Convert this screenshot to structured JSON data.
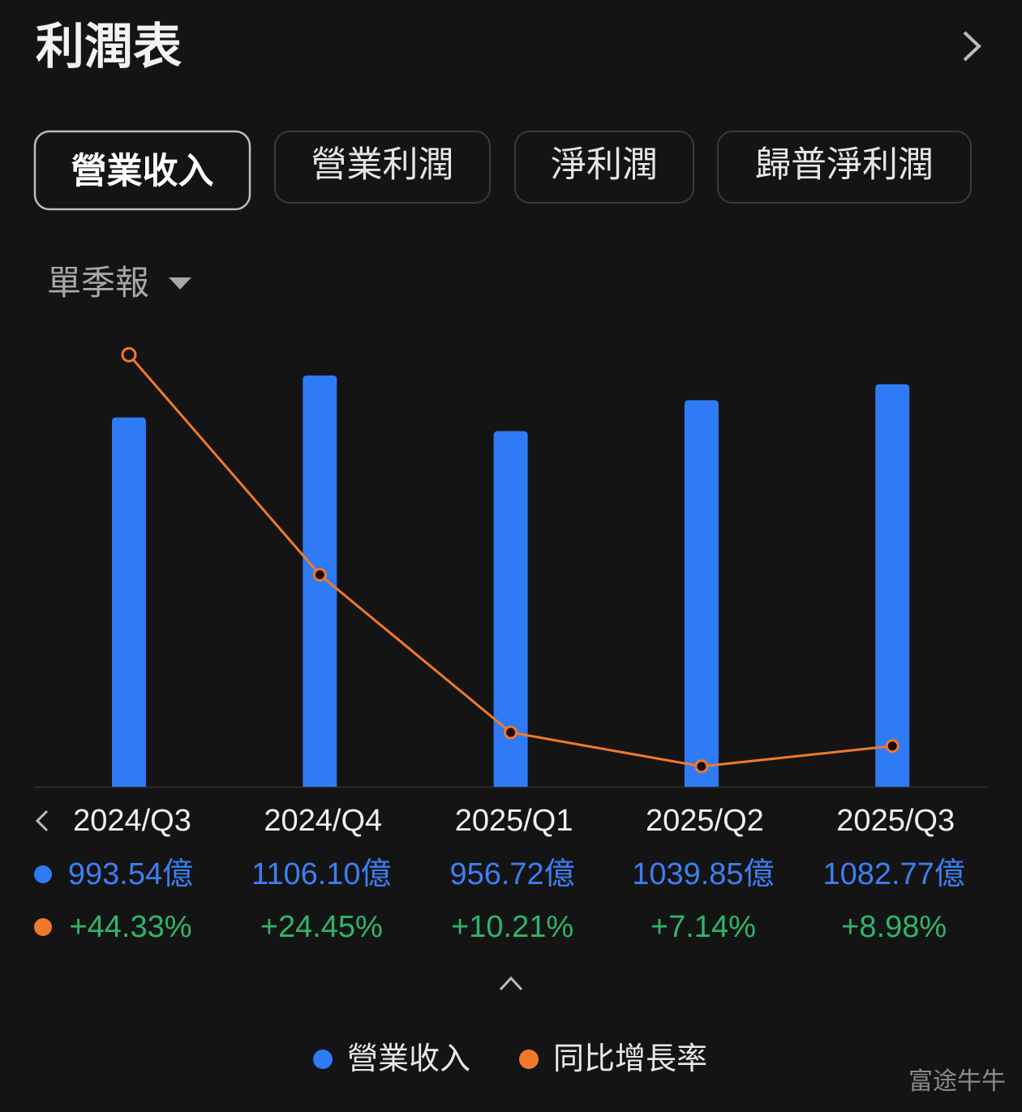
{
  "header": {
    "title": "利潤表"
  },
  "tabs": [
    "營業收入",
    "營業利潤",
    "淨利潤",
    "歸普淨利潤"
  ],
  "period_selector": "單季報",
  "watermark": "富途牛牛",
  "chart_data": {
    "type": "bar",
    "categories": [
      "2024/Q3",
      "2024/Q4",
      "2025/Q1",
      "2025/Q2",
      "2025/Q3"
    ],
    "series": [
      {
        "name": "營業收入",
        "type": "bar",
        "color": "#2f7bf5",
        "values": [
          993.54,
          1106.1,
          956.72,
          1039.85,
          1082.77
        ],
        "value_labels": [
          "993.54億",
          "1106.10億",
          "956.72億",
          "1039.85億",
          "1082.77億"
        ]
      },
      {
        "name": "同比增長率",
        "type": "line",
        "axis": "y2",
        "color": "#f07a2a",
        "values": [
          44.33,
          24.45,
          10.21,
          7.14,
          8.98
        ],
        "value_labels": [
          "+44.33%",
          "+24.45%",
          "+10.21%",
          "+7.14%",
          "+8.98%"
        ]
      }
    ],
    "ylim": [
      0,
      1200
    ],
    "y2lim": [
      5.3,
      45.6
    ]
  }
}
